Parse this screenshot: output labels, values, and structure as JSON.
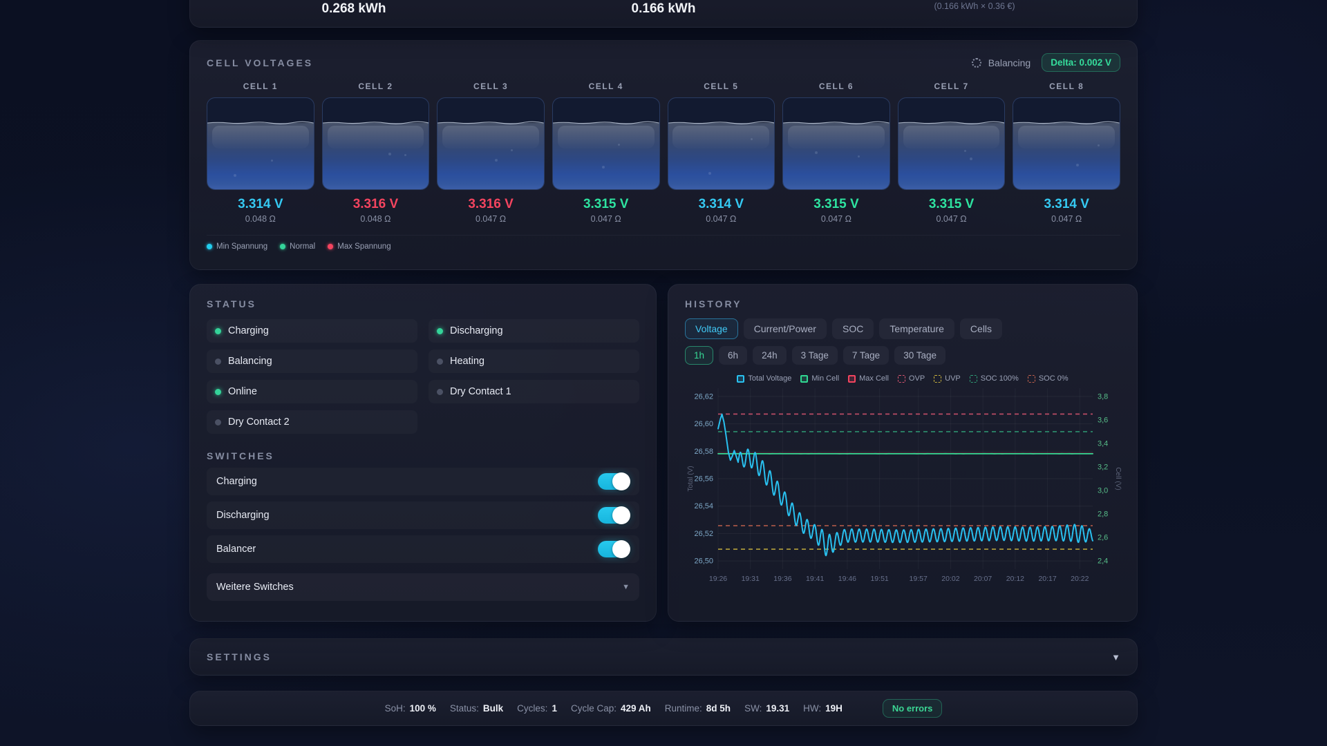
{
  "top_stats": {
    "energy_in": "0.268 kWh",
    "energy_out": "0.166 kWh",
    "cost_note": "(0.166 kWh × 0.36 €)"
  },
  "cell_voltages": {
    "title": "CELL VOLTAGES",
    "balancing_label": "Balancing",
    "delta_badge": "Delta: 0.002 V",
    "fill_level_pct": 72.5,
    "cells": [
      {
        "label": "CELL 1",
        "voltage": "3.314 V",
        "resistance": "0.048 Ω",
        "state": "min"
      },
      {
        "label": "CELL 2",
        "voltage": "3.316 V",
        "resistance": "0.048 Ω",
        "state": "max"
      },
      {
        "label": "CELL 3",
        "voltage": "3.316 V",
        "resistance": "0.047 Ω",
        "state": "max"
      },
      {
        "label": "CELL 4",
        "voltage": "3.315 V",
        "resistance": "0.047 Ω",
        "state": "normal"
      },
      {
        "label": "CELL 5",
        "voltage": "3.314 V",
        "resistance": "0.047 Ω",
        "state": "min"
      },
      {
        "label": "CELL 6",
        "voltage": "3.315 V",
        "resistance": "0.047 Ω",
        "state": "normal"
      },
      {
        "label": "CELL 7",
        "voltage": "3.315 V",
        "resistance": "0.047 Ω",
        "state": "normal"
      },
      {
        "label": "CELL 8",
        "voltage": "3.314 V",
        "resistance": "0.047 Ω",
        "state": "min"
      }
    ],
    "legend": [
      {
        "label": "Min Spannung",
        "color": "#22cdee"
      },
      {
        "label": "Normal",
        "color": "#34d399"
      },
      {
        "label": "Max Spannung",
        "color": "#f4445f"
      }
    ]
  },
  "status": {
    "title": "STATUS",
    "items": [
      {
        "label": "Charging",
        "active": true
      },
      {
        "label": "Discharging",
        "active": true
      },
      {
        "label": "Balancing",
        "active": false
      },
      {
        "label": "Heating",
        "active": false
      },
      {
        "label": "Online",
        "active": true
      },
      {
        "label": "Dry Contact 1",
        "active": false
      },
      {
        "label": "Dry Contact 2",
        "active": false
      }
    ]
  },
  "switches": {
    "title": "SWITCHES",
    "items": [
      {
        "label": "Charging",
        "on": true
      },
      {
        "label": "Discharging",
        "on": true
      },
      {
        "label": "Balancer",
        "on": true
      }
    ],
    "more_label": "Weitere Switches"
  },
  "history": {
    "title": "HISTORY",
    "tabs": [
      "Voltage",
      "Current/Power",
      "SOC",
      "Temperature",
      "Cells"
    ],
    "active_tab": "Voltage",
    "ranges": [
      "1h",
      "6h",
      "24h",
      "3 Tage",
      "7 Tage",
      "30 Tage"
    ],
    "active_range": "1h"
  },
  "chart_data": {
    "type": "line",
    "x_tick_labels": [
      "19:26",
      "19:31",
      "19:36",
      "19:41",
      "19:46",
      "19:51",
      "19:57",
      "20:02",
      "20:07",
      "20:12",
      "20:17",
      "20:22"
    ],
    "x_tick_minutes": [
      0,
      5,
      10,
      15,
      20,
      25,
      31,
      36,
      41,
      46,
      51,
      56
    ],
    "x_domain_minutes": [
      0,
      58
    ],
    "y_left": {
      "label": "Total (V)",
      "tick_labels": [
        "26,62",
        "26,60",
        "26,58",
        "26,56",
        "26,54",
        "26,52",
        "26,50"
      ],
      "tick_values": [
        26.62,
        26.6,
        26.58,
        26.56,
        26.54,
        26.52,
        26.5
      ],
      "min": 26.494,
      "max": 26.626
    },
    "y_right": {
      "label": "Cell (V)",
      "tick_labels": [
        "3,8",
        "3,6",
        "3,4",
        "3,2",
        "3,0",
        "2,8",
        "2,6",
        "2,4"
      ],
      "tick_values": [
        3.8,
        3.6,
        3.4,
        3.2,
        3.0,
        2.8,
        2.6,
        2.4
      ],
      "min": 2.33,
      "max": 3.87
    },
    "legend": [
      {
        "label": "Total Voltage",
        "color": "#29c1f0",
        "style": "solid"
      },
      {
        "label": "Min Cell",
        "color": "#30d892",
        "style": "solid"
      },
      {
        "label": "Max Cell",
        "color": "#f4445f",
        "style": "solid"
      },
      {
        "label": "OVP",
        "color": "#d85570",
        "style": "dashed"
      },
      {
        "label": "UVP",
        "color": "#c9b23e",
        "style": "dashed"
      },
      {
        "label": "SOC 100%",
        "color": "#2f9e77",
        "style": "dashed"
      },
      {
        "label": "SOC 0%",
        "color": "#c2614d",
        "style": "dashed"
      }
    ],
    "thresholds": [
      {
        "name": "OVP",
        "axis": "right",
        "value": 3.65,
        "color": "#d85570"
      },
      {
        "name": "SOC 100%",
        "axis": "right",
        "value": 3.5,
        "color": "#2f9e77"
      },
      {
        "name": "SOC 0%",
        "axis": "right",
        "value": 2.7,
        "color": "#c2614d"
      },
      {
        "name": "UVP",
        "axis": "right",
        "value": 2.5,
        "color": "#c9b23e"
      }
    ],
    "series": [
      {
        "name": "Max Cell",
        "axis": "right",
        "color": "#f4445f",
        "const_value": 3.314
      },
      {
        "name": "Min Cell",
        "axis": "right",
        "color": "#30d892",
        "const_value": 3.3122,
        "noise": 0.0012
      },
      {
        "name": "Total Voltage",
        "axis": "left",
        "color": "#29c1f0",
        "lead_points": [
          [
            0,
            26.5965
          ],
          [
            0.35,
            26.6035
          ],
          [
            0.6,
            26.607
          ],
          [
            0.9,
            26.6015
          ],
          [
            1.2,
            26.5925
          ],
          [
            1.6,
            26.579
          ],
          [
            1.9,
            26.5735
          ],
          [
            2.2,
            26.5765
          ],
          [
            2.5,
            26.5805
          ],
          [
            2.8,
            26.5765
          ],
          [
            3.1,
            26.572
          ]
        ],
        "osc": {
          "start": 3.1,
          "end": 58,
          "period_min": 1.15,
          "phase": -0.3,
          "mean_anchors": [
            [
              3.1,
              26.5735
            ],
            [
              5,
              26.5755
            ],
            [
              6,
              26.571
            ],
            [
              7,
              26.5655
            ],
            [
              8,
              26.559
            ],
            [
              9,
              26.5525
            ],
            [
              10,
              26.546
            ],
            [
              11,
              26.539
            ],
            [
              12,
              26.5325
            ],
            [
              13,
              26.527
            ],
            [
              14,
              26.5235
            ],
            [
              15,
              26.5205
            ],
            [
              16,
              26.516
            ],
            [
              17,
              26.5105
            ],
            [
              18,
              26.5135
            ],
            [
              19,
              26.517
            ],
            [
              20,
              26.5185
            ],
            [
              24,
              26.5185
            ],
            [
              28,
              26.518
            ],
            [
              32,
              26.5185
            ],
            [
              36,
              26.519
            ],
            [
              40,
              26.5195
            ],
            [
              44,
              26.52
            ],
            [
              48,
              26.5195
            ],
            [
              52,
              26.52
            ],
            [
              55,
              26.5205
            ],
            [
              56.5,
              26.5195
            ],
            [
              58,
              26.5185
            ]
          ],
          "amp_anchors": [
            [
              3.1,
              0.005
            ],
            [
              5,
              0.0068
            ],
            [
              8,
              0.007
            ],
            [
              12,
              0.0062
            ],
            [
              15,
              0.0058
            ],
            [
              17,
              0.0088
            ],
            [
              18,
              0.006
            ],
            [
              20,
              0.0048
            ],
            [
              28,
              0.0046
            ],
            [
              36,
              0.0048
            ],
            [
              44,
              0.005
            ],
            [
              52,
              0.0052
            ],
            [
              56,
              0.0065
            ],
            [
              58,
              0.004
            ]
          ]
        }
      }
    ]
  },
  "settings": {
    "title": "SETTINGS"
  },
  "footer": {
    "items": [
      {
        "label": "SoH:",
        "value": "100 %"
      },
      {
        "label": "Status:",
        "value": "Bulk"
      },
      {
        "label": "Cycles:",
        "value": "1"
      },
      {
        "label": "Cycle Cap:",
        "value": "429 Ah"
      },
      {
        "label": "Runtime:",
        "value": "8d 5h"
      },
      {
        "label": "SW:",
        "value": "19.31"
      },
      {
        "label": "HW:",
        "value": "19H"
      }
    ],
    "badge": "No errors"
  }
}
